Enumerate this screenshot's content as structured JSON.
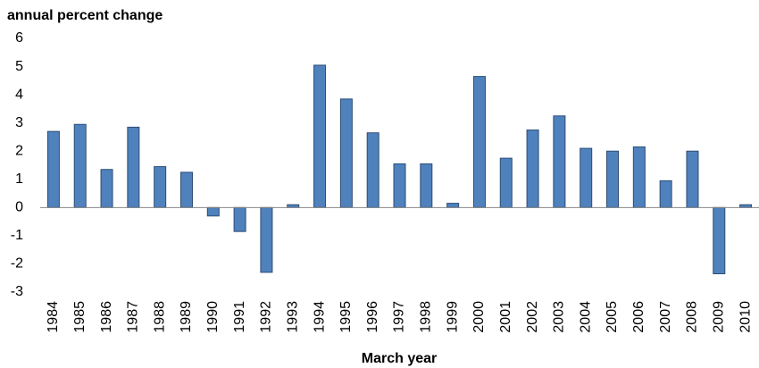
{
  "chart_data": {
    "type": "bar",
    "y_label": "annual percent change",
    "x_label": "March year",
    "categories": [
      "1984",
      "1985",
      "1986",
      "1987",
      "1988",
      "1989",
      "1990",
      "1991",
      "1992",
      "1993",
      "1994",
      "1995",
      "1996",
      "1997",
      "1998",
      "1999",
      "2000",
      "2001",
      "2002",
      "2003",
      "2004",
      "2005",
      "2006",
      "2007",
      "2008",
      "2009",
      "2010"
    ],
    "values": [
      2.7,
      2.95,
      1.35,
      2.85,
      1.45,
      1.25,
      -0.3,
      -0.85,
      -2.3,
      0.1,
      5.05,
      3.85,
      2.65,
      1.55,
      1.55,
      0.15,
      4.65,
      1.75,
      2.75,
      3.25,
      2.1,
      2.0,
      2.15,
      0.95,
      2.0,
      -2.35,
      0.1
    ],
    "color": "#4f81bd",
    "ylim": [
      -3,
      6
    ],
    "yticks": [
      -3,
      -2,
      -1,
      0,
      1,
      2,
      3,
      4,
      5,
      6
    ],
    "grid": false
  }
}
